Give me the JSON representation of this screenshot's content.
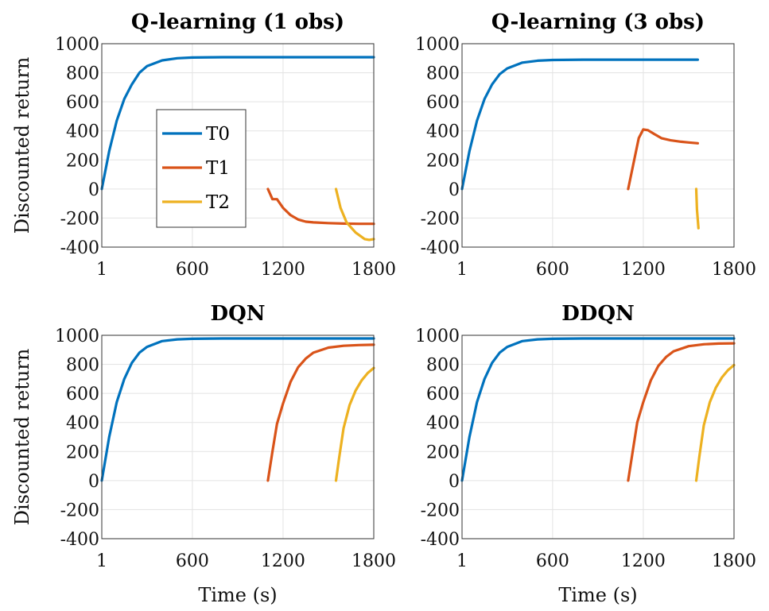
{
  "chart_data": [
    {
      "type": "line",
      "title": "Q-learning (1 obs)",
      "xlabel": "",
      "ylabel": "Discounted return",
      "xlim": [
        1,
        1800
      ],
      "ylim": [
        -400,
        1000
      ],
      "xticks": [
        1,
        600,
        1200,
        1800
      ],
      "yticks": [
        1000,
        800,
        600,
        400,
        200,
        0,
        -200,
        -400
      ],
      "grid": true,
      "legend": "center-left",
      "series": [
        {
          "name": "T0",
          "color": "#0072BD",
          "x": [
            1,
            50,
            100,
            150,
            200,
            250,
            300,
            400,
            500,
            600,
            800,
            1200,
            1800
          ],
          "y": [
            0,
            260,
            470,
            620,
            720,
            800,
            845,
            885,
            900,
            905,
            907,
            907,
            907
          ]
        },
        {
          "name": "T1",
          "color": "#D95319",
          "x": [
            1100,
            1130,
            1160,
            1200,
            1250,
            1300,
            1350,
            1400,
            1500,
            1600,
            1700,
            1800
          ],
          "y": [
            0,
            -70,
            -70,
            -130,
            -180,
            -210,
            -225,
            -230,
            -235,
            -238,
            -240,
            -240
          ]
        },
        {
          "name": "T2",
          "color": "#EDB120",
          "x": [
            1550,
            1580,
            1620,
            1680,
            1740,
            1770,
            1800
          ],
          "y": [
            0,
            -130,
            -230,
            -300,
            -345,
            -350,
            -345
          ]
        }
      ]
    },
    {
      "type": "line",
      "title": "Q-learning (3 obs)",
      "xlabel": "",
      "ylabel": "",
      "xlim": [
        1,
        1800
      ],
      "ylim": [
        -400,
        1000
      ],
      "xticks": [
        1,
        600,
        1200,
        1800
      ],
      "yticks": [
        1000,
        800,
        600,
        400,
        200,
        0,
        -200,
        -400
      ],
      "grid": true,
      "series": [
        {
          "name": "T0",
          "color": "#0072BD",
          "x": [
            1,
            50,
            100,
            150,
            200,
            250,
            300,
            400,
            500,
            600,
            800,
            1200,
            1560
          ],
          "y": [
            0,
            260,
            470,
            620,
            720,
            790,
            830,
            870,
            883,
            888,
            890,
            890,
            890
          ]
        },
        {
          "name": "T1",
          "color": "#D95319",
          "x": [
            1100,
            1140,
            1170,
            1200,
            1230,
            1270,
            1320,
            1380,
            1450,
            1500,
            1560
          ],
          "y": [
            0,
            200,
            350,
            410,
            405,
            380,
            350,
            335,
            325,
            320,
            315
          ]
        },
        {
          "name": "T2",
          "color": "#EDB120",
          "x": [
            1550,
            1555,
            1565
          ],
          "y": [
            0,
            -140,
            -270
          ]
        }
      ]
    },
    {
      "type": "line",
      "title": "DQN",
      "xlabel": "Time (s)",
      "ylabel": "Discounted return",
      "xlim": [
        1,
        1800
      ],
      "ylim": [
        -400,
        1000
      ],
      "xticks": [
        1,
        600,
        1200,
        1800
      ],
      "yticks": [
        1000,
        800,
        600,
        400,
        200,
        0,
        -200,
        -400
      ],
      "grid": true,
      "series": [
        {
          "name": "T0",
          "color": "#0072BD",
          "x": [
            1,
            50,
            100,
            150,
            200,
            250,
            300,
            400,
            500,
            600,
            800,
            1200,
            1800
          ],
          "y": [
            0,
            300,
            540,
            700,
            810,
            880,
            920,
            960,
            972,
            976,
            978,
            978,
            978
          ]
        },
        {
          "name": "T1",
          "color": "#D95319",
          "x": [
            1100,
            1130,
            1160,
            1200,
            1250,
            1300,
            1350,
            1400,
            1500,
            1600,
            1700,
            1800
          ],
          "y": [
            0,
            200,
            390,
            530,
            680,
            780,
            840,
            880,
            915,
            928,
            933,
            935
          ]
        },
        {
          "name": "T2",
          "color": "#EDB120",
          "x": [
            1550,
            1570,
            1600,
            1640,
            1680,
            1720,
            1760,
            1800
          ],
          "y": [
            0,
            150,
            360,
            520,
            620,
            690,
            740,
            775
          ]
        }
      ]
    },
    {
      "type": "line",
      "title": "DDQN",
      "xlabel": "Time (s)",
      "ylabel": "",
      "xlim": [
        1,
        1800
      ],
      "ylim": [
        -400,
        1000
      ],
      "xticks": [
        1,
        600,
        1200,
        1800
      ],
      "yticks": [
        1000,
        800,
        600,
        400,
        200,
        0,
        -200,
        -400
      ],
      "grid": true,
      "series": [
        {
          "name": "T0",
          "color": "#0072BD",
          "x": [
            1,
            50,
            100,
            150,
            200,
            250,
            300,
            400,
            500,
            600,
            800,
            1200,
            1800
          ],
          "y": [
            0,
            300,
            540,
            700,
            810,
            880,
            920,
            960,
            972,
            976,
            978,
            978,
            978
          ]
        },
        {
          "name": "T1",
          "color": "#D95319",
          "x": [
            1100,
            1130,
            1160,
            1200,
            1250,
            1300,
            1350,
            1400,
            1500,
            1600,
            1700,
            1800
          ],
          "y": [
            0,
            200,
            400,
            540,
            690,
            790,
            850,
            890,
            925,
            938,
            943,
            945
          ]
        },
        {
          "name": "T2",
          "color": "#EDB120",
          "x": [
            1550,
            1570,
            1600,
            1640,
            1680,
            1720,
            1760,
            1800
          ],
          "y": [
            0,
            160,
            380,
            540,
            640,
            710,
            760,
            795
          ]
        }
      ]
    }
  ]
}
